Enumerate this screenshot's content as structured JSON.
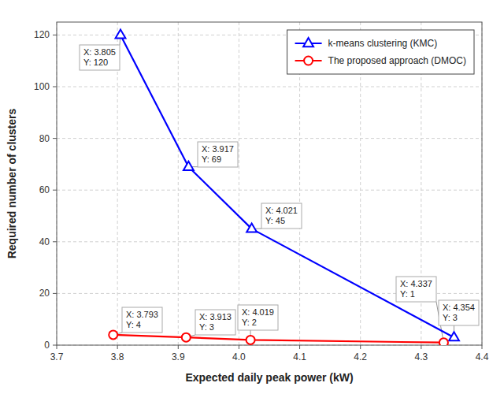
{
  "chart_data": {
    "type": "line",
    "x_label": "Expected daily peak power (kW)",
    "y_label": "Required number of clusters",
    "xlim": [
      3.7,
      4.4
    ],
    "ylim": [
      0,
      125
    ],
    "xticks": [
      3.7,
      3.8,
      3.9,
      {
        "value": 4.0,
        "label": "4.0"
      },
      4.1,
      4.2,
      4.3,
      4.4
    ],
    "yticks": [
      0,
      20,
      40,
      60,
      80,
      100,
      120
    ],
    "grid": true,
    "legend": "upper right",
    "series": [
      {
        "name": "k-means clustering (KMC)",
        "color": "#0000FF",
        "marker": "triangle",
        "x": [
          3.805,
          3.917,
          4.021,
          4.354
        ],
        "values": [
          120,
          69,
          45,
          3
        ],
        "annotations": [
          [
            "X: 3.805",
            "Y: 120"
          ],
          [
            "X: 3.917",
            "Y: 69"
          ],
          [
            "X: 4.021",
            "Y: 45"
          ],
          [
            "X: 4.354",
            "Y: 3"
          ]
        ]
      },
      {
        "name": "The proposed approach (DMOC)",
        "color": "#FF0000",
        "marker": "circle",
        "x": [
          3.793,
          3.913,
          4.019,
          4.337
        ],
        "values": [
          4,
          3,
          2,
          1
        ],
        "annotations": [
          [
            "X: 3.793",
            "Y: 4"
          ],
          [
            "X: 3.913",
            "Y: 3"
          ],
          [
            "X: 4.019",
            "Y: 2"
          ],
          [
            "X: 4.337",
            "Y: 1"
          ]
        ]
      }
    ]
  }
}
